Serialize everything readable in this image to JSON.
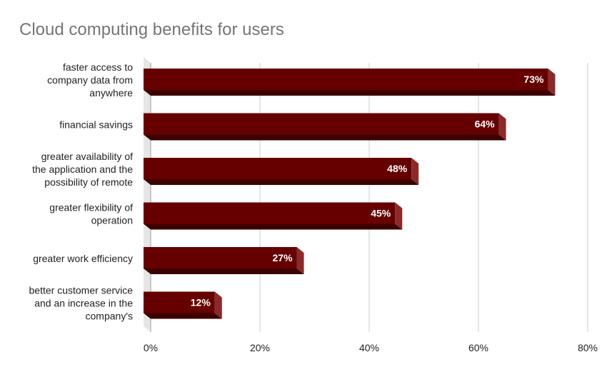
{
  "colors": {
    "bar_front": "#660000",
    "bar_side": "#8b2a2a",
    "bar_bottom": "#3d0000",
    "grid": "#cccccc",
    "wall": "#e6e6e6"
  },
  "chart_data": {
    "type": "bar",
    "orientation": "horizontal",
    "style": "3d",
    "title": "Cloud computing benefits for users",
    "xlabel": "",
    "ylabel": "",
    "xlim": [
      0,
      80
    ],
    "x_ticks": [
      0,
      20,
      40,
      60,
      80
    ],
    "x_tick_labels": [
      "0%",
      "20%",
      "40%",
      "60%",
      "80%"
    ],
    "grid": true,
    "legend": "none",
    "categories": [
      [
        "faster access to",
        "company data from",
        "anywhere"
      ],
      [
        "financial savings"
      ],
      [
        "greater availability of",
        "the application and the",
        "possibility of remote"
      ],
      [
        "greater flexibility of",
        "operation"
      ],
      [
        "greater work efficiency"
      ],
      [
        "better customer service",
        "and an increase in the",
        "company's"
      ]
    ],
    "values": [
      73,
      64,
      48,
      45,
      27,
      12
    ],
    "value_labels": [
      "73%",
      "64%",
      "48%",
      "45%",
      "27%",
      "12%"
    ]
  }
}
